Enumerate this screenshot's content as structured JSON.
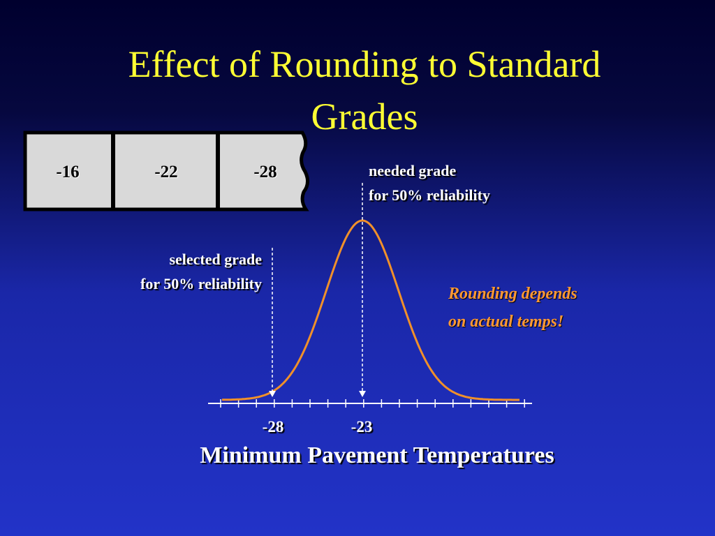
{
  "title": "Effect of Rounding to Standard Grades",
  "grades": [
    "-16",
    "-22",
    "-28"
  ],
  "needed_label": [
    "needed grade",
    "for 50% reliability"
  ],
  "selected_label": [
    "selected grade",
    "for 50% reliability"
  ],
  "note": [
    "Rounding depends",
    "on actual temps!"
  ],
  "axis": {
    "tick_labels": [
      "-28",
      "-23"
    ],
    "title": "Minimum Pavement Temperatures"
  }
}
